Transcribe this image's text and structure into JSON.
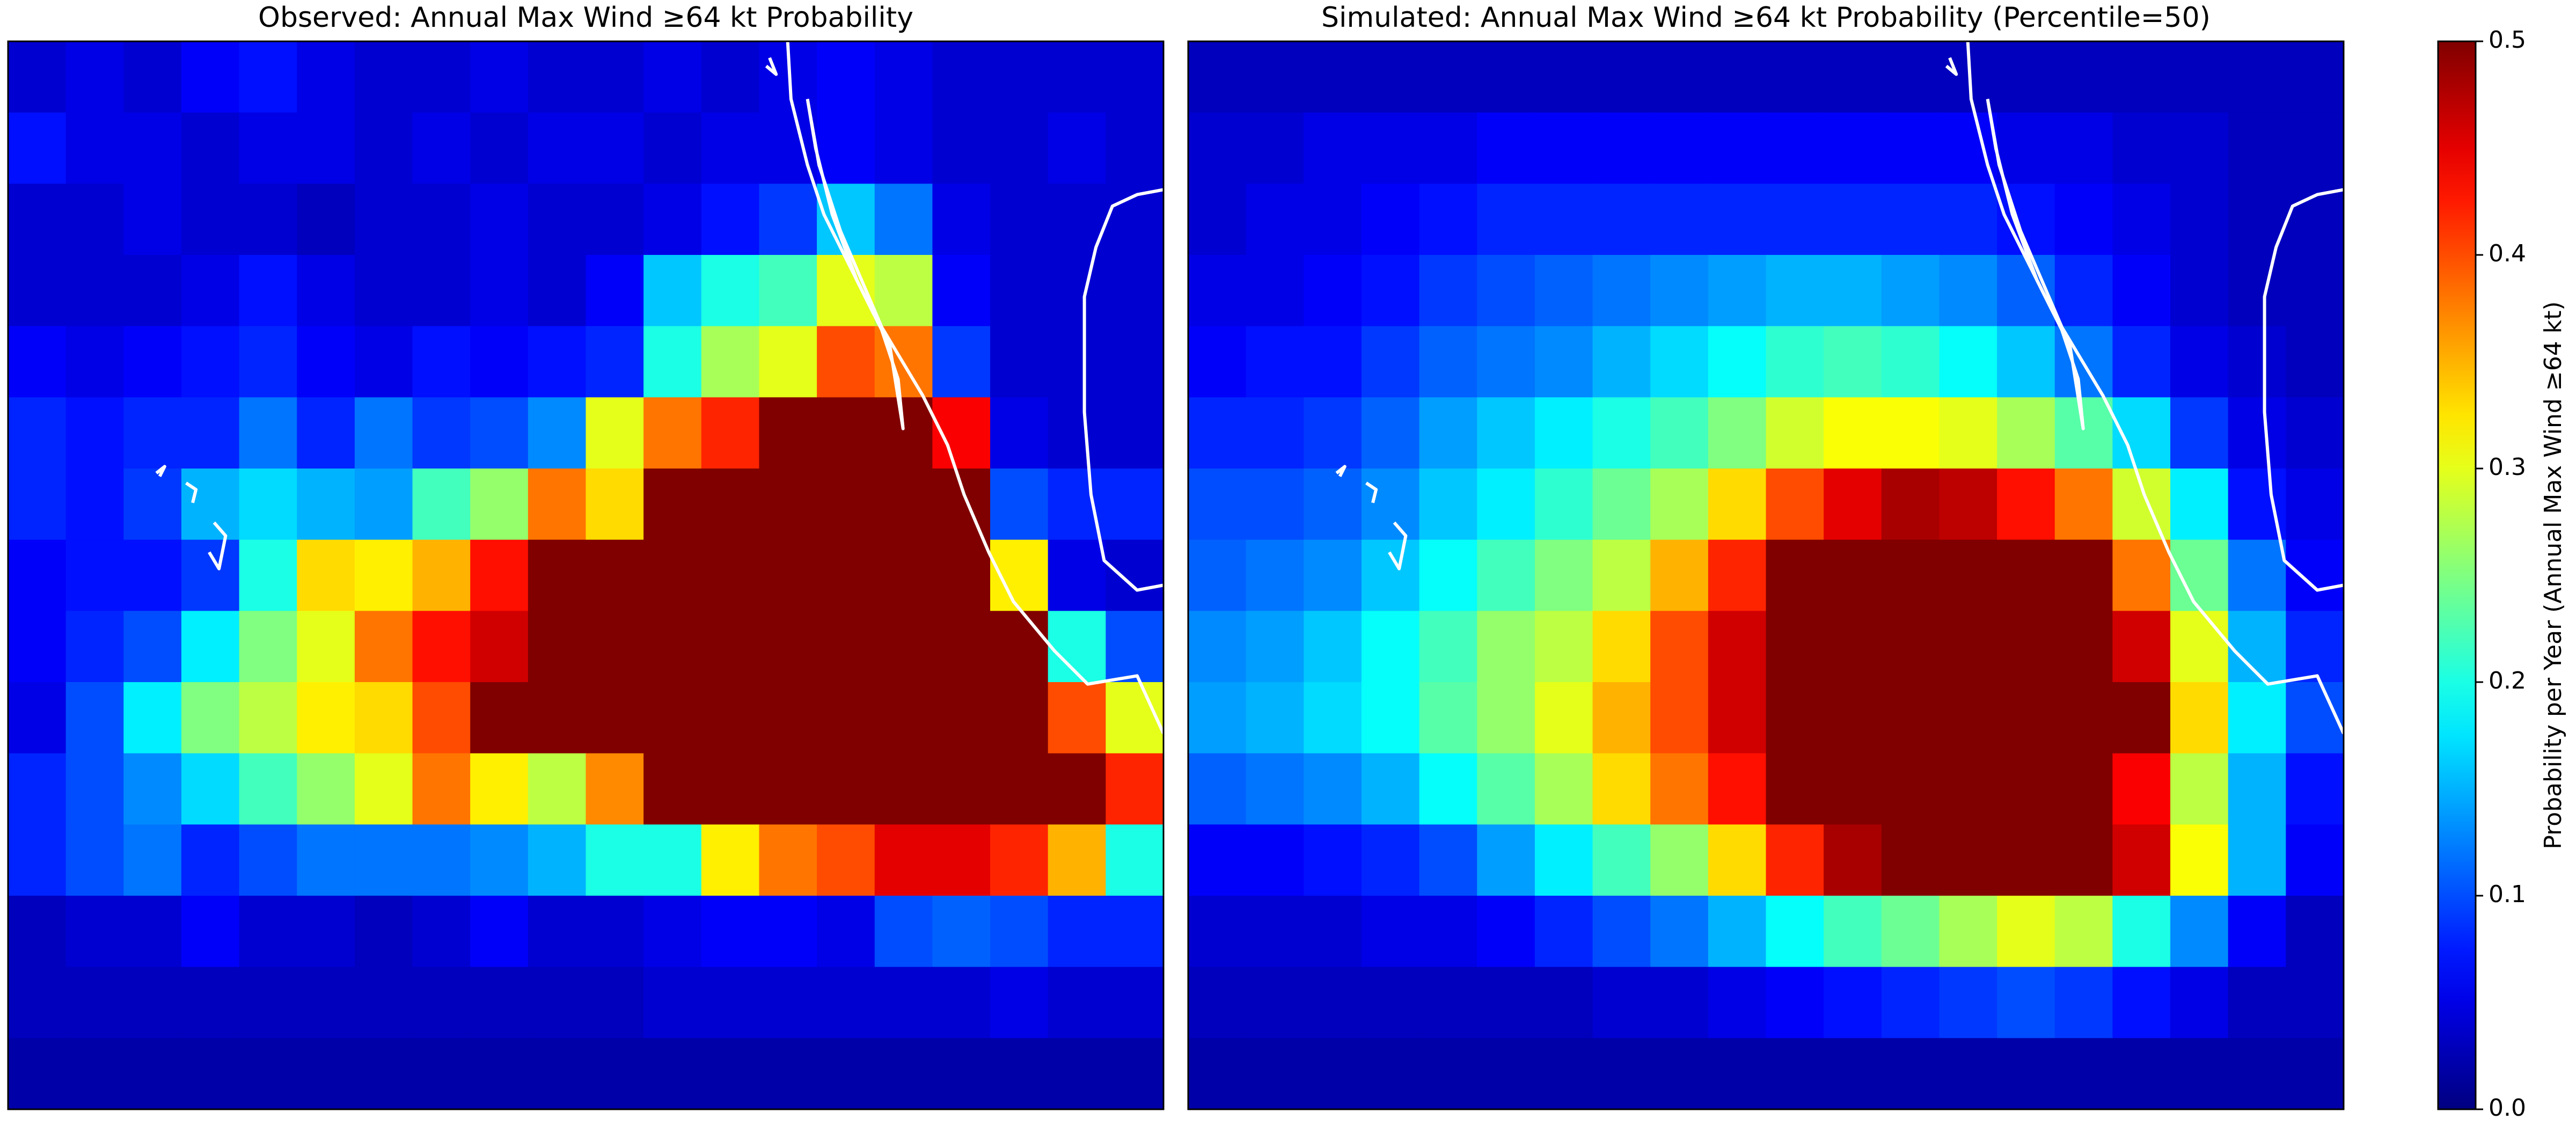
{
  "chart_data": [
    {
      "type": "heatmap",
      "title": "Observed: Annual Max Wind ≥64 kt Probability",
      "z": [
        [
          0.04,
          0.05,
          0.04,
          0.06,
          0.07,
          0.05,
          0.04,
          0.04,
          0.05,
          0.04,
          0.04,
          0.05,
          0.04,
          0.05,
          0.06,
          0.05,
          0.04,
          0.04,
          0.04,
          0.04
        ],
        [
          0.07,
          0.05,
          0.05,
          0.04,
          0.05,
          0.05,
          0.04,
          0.05,
          0.04,
          0.05,
          0.05,
          0.04,
          0.05,
          0.05,
          0.06,
          0.05,
          0.04,
          0.04,
          0.05,
          0.04
        ],
        [
          0.04,
          0.04,
          0.05,
          0.04,
          0.04,
          0.03,
          0.04,
          0.04,
          0.05,
          0.04,
          0.04,
          0.05,
          0.07,
          0.09,
          0.16,
          0.12,
          0.05,
          0.04,
          0.04,
          0.04
        ],
        [
          0.04,
          0.04,
          0.04,
          0.05,
          0.07,
          0.05,
          0.04,
          0.04,
          0.05,
          0.04,
          0.06,
          0.16,
          0.2,
          0.22,
          0.3,
          0.28,
          0.06,
          0.04,
          0.04,
          0.04
        ],
        [
          0.06,
          0.05,
          0.06,
          0.07,
          0.08,
          0.06,
          0.05,
          0.07,
          0.06,
          0.07,
          0.08,
          0.2,
          0.27,
          0.3,
          0.4,
          0.38,
          0.09,
          0.04,
          0.04,
          0.04
        ],
        [
          0.08,
          0.07,
          0.08,
          0.08,
          0.12,
          0.08,
          0.12,
          0.09,
          0.1,
          0.13,
          0.3,
          0.38,
          0.42,
          0.5,
          0.5,
          0.5,
          0.44,
          0.05,
          0.04,
          0.04
        ],
        [
          0.08,
          0.07,
          0.09,
          0.15,
          0.17,
          0.15,
          0.14,
          0.22,
          0.26,
          0.38,
          0.33,
          0.5,
          0.5,
          0.5,
          0.5,
          0.5,
          0.5,
          0.1,
          0.08,
          0.08
        ],
        [
          0.06,
          0.07,
          0.07,
          0.09,
          0.2,
          0.33,
          0.32,
          0.35,
          0.43,
          0.5,
          0.5,
          0.5,
          0.5,
          0.5,
          0.5,
          0.5,
          0.5,
          0.32,
          0.05,
          0.04
        ],
        [
          0.06,
          0.08,
          0.1,
          0.18,
          0.25,
          0.3,
          0.38,
          0.43,
          0.46,
          0.5,
          0.5,
          0.5,
          0.5,
          0.5,
          0.5,
          0.5,
          0.5,
          0.5,
          0.2,
          0.1
        ],
        [
          0.05,
          0.1,
          0.18,
          0.25,
          0.28,
          0.32,
          0.33,
          0.4,
          0.5,
          0.5,
          0.5,
          0.5,
          0.5,
          0.5,
          0.5,
          0.5,
          0.5,
          0.5,
          0.4,
          0.3
        ],
        [
          0.08,
          0.1,
          0.13,
          0.17,
          0.22,
          0.26,
          0.3,
          0.38,
          0.32,
          0.28,
          0.37,
          0.5,
          0.5,
          0.5,
          0.5,
          0.5,
          0.5,
          0.5,
          0.5,
          0.42
        ],
        [
          0.08,
          0.1,
          0.12,
          0.08,
          0.1,
          0.12,
          0.12,
          0.12,
          0.13,
          0.15,
          0.2,
          0.2,
          0.32,
          0.38,
          0.4,
          0.45,
          0.45,
          0.42,
          0.35,
          0.2
        ],
        [
          0.03,
          0.04,
          0.04,
          0.06,
          0.04,
          0.04,
          0.03,
          0.04,
          0.06,
          0.04,
          0.04,
          0.05,
          0.06,
          0.06,
          0.05,
          0.1,
          0.11,
          0.1,
          0.08,
          0.08
        ],
        [
          0.03,
          0.03,
          0.03,
          0.03,
          0.03,
          0.03,
          0.03,
          0.03,
          0.03,
          0.03,
          0.03,
          0.04,
          0.04,
          0.04,
          0.04,
          0.04,
          0.04,
          0.05,
          0.04,
          0.04
        ],
        [
          0.02,
          0.02,
          0.02,
          0.02,
          0.02,
          0.02,
          0.02,
          0.02,
          0.02,
          0.02,
          0.02,
          0.02,
          0.02,
          0.02,
          0.02,
          0.02,
          0.02,
          0.02,
          0.02,
          0.02
        ]
      ]
    },
    {
      "type": "heatmap",
      "title": "Simulated: Annual Max Wind ≥64 kt Probability (Percentile=50)",
      "z": [
        [
          0.03,
          0.03,
          0.03,
          0.03,
          0.03,
          0.03,
          0.03,
          0.03,
          0.03,
          0.03,
          0.03,
          0.03,
          0.03,
          0.03,
          0.03,
          0.03,
          0.03,
          0.03,
          0.03,
          0.03
        ],
        [
          0.04,
          0.04,
          0.05,
          0.05,
          0.05,
          0.06,
          0.06,
          0.06,
          0.06,
          0.06,
          0.06,
          0.06,
          0.06,
          0.06,
          0.05,
          0.05,
          0.04,
          0.04,
          0.03,
          0.03
        ],
        [
          0.04,
          0.05,
          0.05,
          0.06,
          0.07,
          0.08,
          0.08,
          0.08,
          0.08,
          0.08,
          0.08,
          0.08,
          0.08,
          0.08,
          0.07,
          0.06,
          0.05,
          0.04,
          0.03,
          0.03
        ],
        [
          0.05,
          0.05,
          0.06,
          0.07,
          0.09,
          0.1,
          0.11,
          0.12,
          0.13,
          0.14,
          0.15,
          0.15,
          0.14,
          0.13,
          0.11,
          0.08,
          0.06,
          0.04,
          0.03,
          0.03
        ],
        [
          0.06,
          0.07,
          0.07,
          0.09,
          0.11,
          0.12,
          0.13,
          0.15,
          0.17,
          0.19,
          0.21,
          0.22,
          0.21,
          0.19,
          0.16,
          0.12,
          0.08,
          0.05,
          0.04,
          0.03
        ],
        [
          0.08,
          0.08,
          0.09,
          0.11,
          0.14,
          0.16,
          0.18,
          0.2,
          0.22,
          0.25,
          0.29,
          0.31,
          0.31,
          0.3,
          0.27,
          0.23,
          0.17,
          0.09,
          0.05,
          0.04
        ],
        [
          0.1,
          0.1,
          0.11,
          0.13,
          0.16,
          0.18,
          0.21,
          0.24,
          0.27,
          0.33,
          0.4,
          0.45,
          0.48,
          0.47,
          0.43,
          0.38,
          0.29,
          0.18,
          0.07,
          0.05
        ],
        [
          0.11,
          0.12,
          0.13,
          0.16,
          0.19,
          0.22,
          0.25,
          0.28,
          0.35,
          0.42,
          0.5,
          0.5,
          0.5,
          0.5,
          0.5,
          0.5,
          0.38,
          0.24,
          0.12,
          0.06
        ],
        [
          0.13,
          0.14,
          0.16,
          0.19,
          0.22,
          0.26,
          0.28,
          0.33,
          0.4,
          0.46,
          0.5,
          0.5,
          0.5,
          0.5,
          0.5,
          0.5,
          0.46,
          0.3,
          0.15,
          0.08
        ],
        [
          0.14,
          0.15,
          0.17,
          0.19,
          0.23,
          0.26,
          0.3,
          0.35,
          0.4,
          0.46,
          0.5,
          0.5,
          0.5,
          0.5,
          0.5,
          0.5,
          0.5,
          0.33,
          0.18,
          0.1
        ],
        [
          0.11,
          0.12,
          0.13,
          0.15,
          0.19,
          0.23,
          0.27,
          0.33,
          0.38,
          0.43,
          0.5,
          0.5,
          0.5,
          0.5,
          0.5,
          0.5,
          0.44,
          0.28,
          0.15,
          0.07
        ],
        [
          0.06,
          0.06,
          0.07,
          0.08,
          0.1,
          0.14,
          0.18,
          0.22,
          0.26,
          0.33,
          0.42,
          0.48,
          0.5,
          0.5,
          0.5,
          0.5,
          0.46,
          0.31,
          0.15,
          0.06
        ],
        [
          0.04,
          0.04,
          0.04,
          0.05,
          0.05,
          0.06,
          0.08,
          0.1,
          0.12,
          0.15,
          0.19,
          0.22,
          0.24,
          0.27,
          0.3,
          0.28,
          0.2,
          0.13,
          0.06,
          0.03
        ],
        [
          0.03,
          0.03,
          0.03,
          0.03,
          0.03,
          0.03,
          0.03,
          0.04,
          0.04,
          0.05,
          0.06,
          0.07,
          0.08,
          0.09,
          0.1,
          0.09,
          0.07,
          0.05,
          0.03,
          0.03
        ],
        [
          0.02,
          0.02,
          0.02,
          0.02,
          0.02,
          0.02,
          0.02,
          0.02,
          0.02,
          0.02,
          0.02,
          0.02,
          0.02,
          0.02,
          0.02,
          0.02,
          0.02,
          0.02,
          0.02,
          0.02
        ]
      ]
    },
    {
      "type": "colorbar",
      "label": "Probability per Year (Annual Max Wind ≥64 kt)",
      "colormap": "jet",
      "ylim": [
        0,
        0.5
      ],
      "yticks": [
        {
          "value": 0,
          "label": "0.0"
        },
        0.1,
        0.2,
        0.3,
        0.4,
        0.5
      ]
    }
  ]
}
